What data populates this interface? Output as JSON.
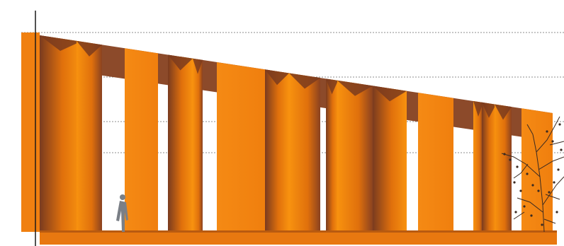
{
  "drawing": {
    "kind": "architectural-elevation",
    "colors": {
      "background": "#ffffff",
      "fin_light": "#f58a14",
      "fin_mid": "#e8780c",
      "fin_dark": "#7a3b1f",
      "fin_shadow": "#8a4220",
      "roof_soffit": "#8c4a2a",
      "base": "#e87810",
      "guide_line": "#8c8c8c",
      "axis_line": "#1a1a1a",
      "figure": "#7a7f86",
      "tree": "#3a2a22"
    },
    "reference_levels": 4,
    "fin_count": 17,
    "has_person_figure": true,
    "has_tree": true
  }
}
